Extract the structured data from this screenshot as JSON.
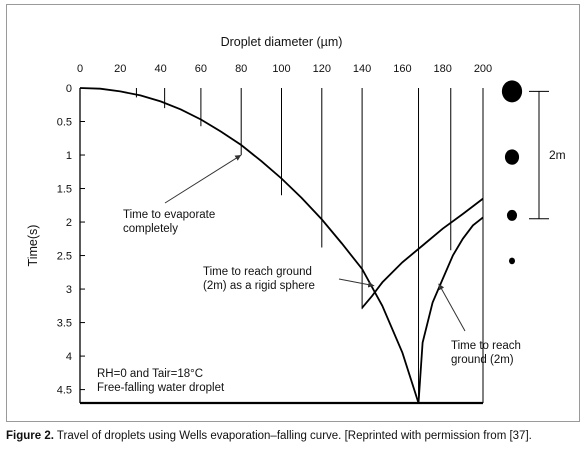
{
  "chart_data": {
    "type": "line",
    "title": "",
    "xlabel": "Droplet diameter (µm)",
    "ylabel": "Time(s)",
    "x_axis_position": "top",
    "y_axis_inverted": true,
    "xlim": [
      0,
      200
    ],
    "ylim": [
      0,
      4.7
    ],
    "xticks": [
      "0",
      "20",
      "40",
      "60",
      "80",
      "100",
      "120",
      "140",
      "160",
      "180",
      "200"
    ],
    "yticks": [
      "0",
      "0.5",
      "1",
      "1.5",
      "2",
      "2.5",
      "3",
      "3.5",
      "4",
      "4.5"
    ],
    "series": [
      {
        "x": [
          0,
          10,
          20,
          30,
          40,
          50,
          60,
          70,
          80,
          90,
          100,
          110,
          120,
          130,
          140,
          150,
          160,
          168
        ],
        "y": [
          0,
          0.01,
          0.05,
          0.11,
          0.2,
          0.32,
          0.47,
          0.65,
          0.85,
          1.09,
          1.35,
          1.64,
          1.96,
          2.32,
          2.7,
          3.25,
          3.95,
          4.7
        ]
      },
      {
        "x": [
          140,
          145,
          150,
          160,
          170,
          180,
          190,
          200
        ],
        "y": [
          3.28,
          3.1,
          2.9,
          2.6,
          2.35,
          2.1,
          1.88,
          1.65
        ]
      },
      {
        "x": [
          168,
          170,
          175,
          180,
          185,
          190,
          195,
          200
        ],
        "y": [
          4.7,
          3.8,
          3.2,
          2.85,
          2.5,
          2.25,
          2.05,
          1.93
        ]
      }
    ],
    "drop_lines": [
      {
        "x": 28,
        "y_end": 0.14
      },
      {
        "x": 42,
        "y_end": 0.3
      },
      {
        "x": 60,
        "y_end": 0.57
      },
      {
        "x": 80,
        "y_end": 1.0
      },
      {
        "x": 100,
        "y_end": 1.6
      },
      {
        "x": 120,
        "y_end": 2.38
      },
      {
        "x": 140,
        "y_end": 3.3
      },
      {
        "x": 168,
        "y_end": 4.7
      },
      {
        "x": 184,
        "y_end": 2.42
      },
      {
        "x": 200,
        "y_end": 4.7
      }
    ],
    "annotations": [
      {
        "lines": [
          "Time to evaporate",
          "completely"
        ],
        "points_to": [
          80,
          1.0
        ]
      },
      {
        "lines": [
          "Time to reach ground",
          "(2m) as a rigid sphere"
        ],
        "points_to": [
          146,
          2.95
        ]
      },
      {
        "lines": [
          "Time to reach",
          "ground (2m)"
        ],
        "points_to": [
          178,
          2.92
        ]
      },
      {
        "lines": [
          "RH=0 and Tair=18°C",
          "Free-falling water droplet"
        ]
      }
    ],
    "height_scale": {
      "label": "2m",
      "from_time": 0.05,
      "to_time": 1.95
    },
    "droplet_icons": [
      {
        "time": 0.05,
        "relative_size": 1.0
      },
      {
        "time": 1.03,
        "relative_size": 0.7
      },
      {
        "time": 1.9,
        "relative_size": 0.5
      },
      {
        "time": 2.58,
        "relative_size": 0.3
      }
    ],
    "colors": {
      "line": "#000000",
      "droplet": "#000000"
    }
  },
  "caption": {
    "figure_label": "Figure 2.",
    "text": " Travel of droplets using Wells evaporation–falling curve. [Reprinted with permission from [37]."
  }
}
